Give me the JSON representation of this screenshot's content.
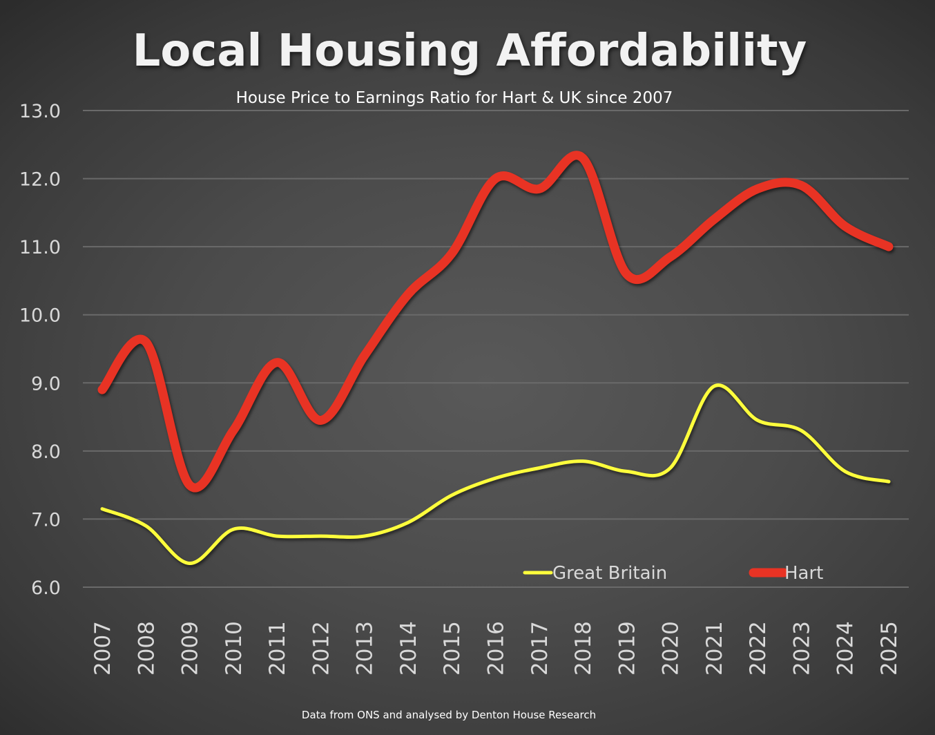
{
  "chart_data": {
    "type": "line",
    "title": "Local Housing Affordability",
    "subtitle": "House Price to Earnings Ratio for Hart & UK since 2007",
    "xlabel": "",
    "ylabel": "",
    "ylim": [
      6.0,
      13.0
    ],
    "yticks": [
      "6.0",
      "7.0",
      "8.0",
      "9.0",
      "10.0",
      "11.0",
      "12.0",
      "13.0"
    ],
    "grid": true,
    "smoothed": true,
    "legend_position": "bottom-right",
    "categories": [
      "2007",
      "2008",
      "2009",
      "2010",
      "2011",
      "2012",
      "2013",
      "2014",
      "2015",
      "2016",
      "2017",
      "2018",
      "2019",
      "2020",
      "2021",
      "2022",
      "2023",
      "2024",
      "2025"
    ],
    "series": [
      {
        "name": "Great Britain",
        "color": "#FFFF3C",
        "values": [
          7.15,
          6.9,
          6.35,
          6.85,
          6.75,
          6.75,
          6.75,
          6.95,
          7.35,
          7.6,
          7.75,
          7.85,
          7.7,
          7.75,
          8.95,
          8.45,
          8.3,
          7.7,
          7.55
        ]
      },
      {
        "name": "Hart",
        "color": "#E83324",
        "values": [
          8.9,
          9.6,
          7.5,
          8.3,
          9.3,
          8.45,
          9.4,
          10.3,
          10.9,
          12.0,
          11.85,
          12.3,
          10.6,
          10.85,
          11.4,
          11.85,
          11.9,
          11.3,
          11.0
        ]
      }
    ],
    "footnote": "Data from ONS and analysed by Denton House Research"
  }
}
